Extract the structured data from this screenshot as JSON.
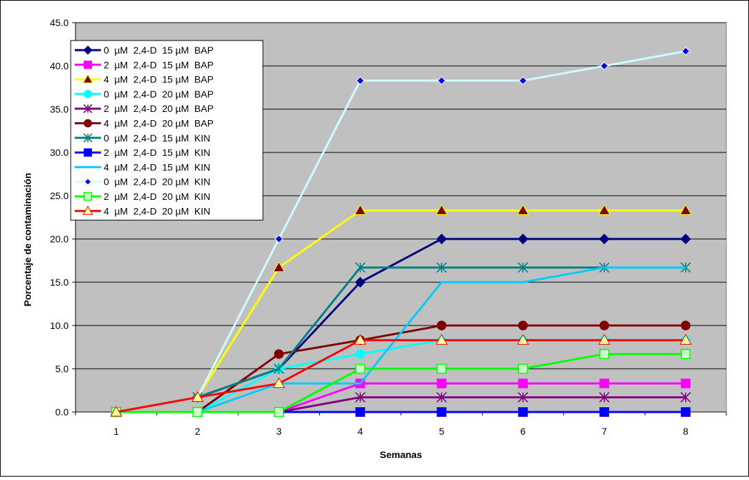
{
  "chart_data": {
    "type": "line",
    "title": "",
    "xlabel": "Semanas",
    "ylabel": "Porcentaje de contaminación",
    "x": [
      1,
      2,
      3,
      4,
      5,
      6,
      7,
      8
    ],
    "xlim": [
      1,
      8
    ],
    "ylim": [
      0,
      45
    ],
    "y_ticks": [
      "0.0",
      "5.0",
      "10.0",
      "15.0",
      "20.0",
      "25.0",
      "30.0",
      "35.0",
      "40.0",
      "45.0"
    ],
    "x_ticks": [
      "1",
      "2",
      "3",
      "4",
      "5",
      "6",
      "7",
      "8"
    ],
    "grid": "horizontal",
    "plot_background": "#c0c0c0",
    "legend_position": "top-left inside plot",
    "series": [
      {
        "name": "0  µM  2,4-D  15 µM  BAP",
        "color": "#000080",
        "marker": "diamond",
        "marker_fill": "#000080",
        "values": [
          0,
          1.7,
          5.0,
          15.0,
          20.0,
          20.0,
          20.0,
          20.0
        ]
      },
      {
        "name": "2  µM  2,4-D  15 µM  BAP",
        "color": "#ff00ff",
        "marker": "square",
        "marker_fill": "#ff00ff",
        "values": [
          0,
          0,
          0,
          3.3,
          3.3,
          3.3,
          3.3,
          3.3
        ]
      },
      {
        "name": "4  µM  2,4-D  15 µM  BAP",
        "color": "#ffff00",
        "marker": "triangle",
        "marker_fill": "#800000",
        "values": [
          0,
          1.7,
          16.7,
          23.3,
          23.3,
          23.3,
          23.3,
          23.3
        ]
      },
      {
        "name": "0  µM  2,4-D  20 µM  BAP",
        "color": "#00ffff",
        "marker": "circle",
        "marker_fill": "#00ffff",
        "values": [
          0,
          0,
          5.0,
          6.7,
          8.3,
          8.3,
          8.3,
          8.3
        ]
      },
      {
        "name": "2  µM  2,4-D  20 µM  BAP",
        "color": "#800080",
        "marker": "asterisk",
        "marker_fill": "#800080",
        "values": [
          0,
          0,
          0,
          1.7,
          1.7,
          1.7,
          1.7,
          1.7
        ]
      },
      {
        "name": "4  µM  2,4-D  20 µM  BAP",
        "color": "#800000",
        "marker": "circle",
        "marker_fill": "#800000",
        "values": [
          0,
          0,
          6.7,
          8.3,
          10.0,
          10.0,
          10.0,
          10.0
        ]
      },
      {
        "name": "0  µM  2,4-D  15 µM  KIN",
        "color": "#008080",
        "marker": "asterisk",
        "marker_fill": "#008080",
        "values": [
          0,
          1.7,
          5.0,
          16.7,
          16.7,
          16.7,
          16.7,
          16.7
        ]
      },
      {
        "name": "2  µM  2,4-D  15 µM  KIN",
        "color": "#0000ff",
        "marker": "square",
        "marker_fill": "#0000ff",
        "values": [
          0,
          0,
          0,
          0,
          0,
          0,
          0,
          0
        ]
      },
      {
        "name": "4  µM  2,4-D  15 µM  KIN",
        "color": "#00ccff",
        "marker": "none",
        "marker_fill": "#00ccff",
        "values": [
          0,
          0,
          3.3,
          3.3,
          15.0,
          15.0,
          16.7,
          16.7
        ]
      },
      {
        "name": "0  µM  2,4-D  20 µM  KIN",
        "color": "#ccffff",
        "marker": "diamond-small",
        "marker_fill": "#0000ff",
        "values": [
          0,
          1.7,
          20.0,
          38.3,
          38.3,
          38.3,
          40.0,
          41.7
        ]
      },
      {
        "name": "2  µM  2,4-D  20 µM  KIN",
        "color": "#00ff00",
        "marker": "square-open",
        "marker_fill": "#ccffcc",
        "values": [
          0,
          0,
          0,
          5.0,
          5.0,
          5.0,
          6.7,
          6.7
        ]
      },
      {
        "name": "4  µM  2,4-D  20 µM  KIN",
        "color": "#ff0000",
        "marker": "triangle",
        "marker_fill": "#ffff99",
        "values": [
          0,
          1.7,
          3.3,
          8.3,
          8.3,
          8.3,
          8.3,
          8.3
        ]
      }
    ]
  }
}
